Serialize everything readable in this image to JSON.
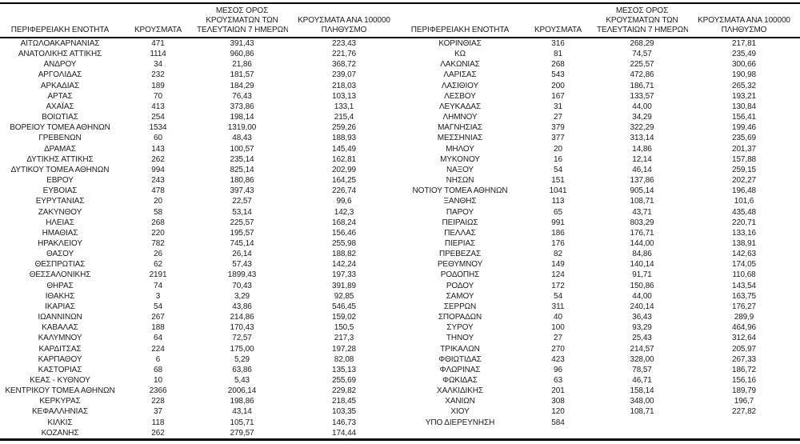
{
  "page": {
    "background_color": "#ffffff",
    "text_color": "#1c1c1c",
    "rule_color": "#000000"
  },
  "columns_meaning": [
    "region",
    "cases",
    "avg_cases_last_7_days",
    "cases_per_100000_population"
  ],
  "column_headers": {
    "region": "ΠΕΡΙΦΕΡΕΙΑΚΗ ΕΝΟΤΗΤΑ",
    "cases": "ΚΡΟΥΣΜΑΤΑ",
    "avg7_lines": [
      "ΜΕΣΟΣ ΟΡΟΣ",
      "ΚΡΟΥΣΜΑΤΩΝ ΤΩΝ",
      "ΤΕΛΕΥΤΑΙΩΝ 7 ΗΜΕΡΩΝ"
    ],
    "per100k_lines": [
      "ΚΡΟΥΣΜΑΤΑ ΑΝΑ 100000",
      "ΠΛΗΘΥΣΜΟ"
    ]
  },
  "left_table": {
    "rows": [
      [
        "ΑΙΤΩΛΟΑΚΑΡΝΑΝΙΑΣ",
        "471",
        "391,43",
        "223,43"
      ],
      [
        "ΑΝΑΤΟΛΙΚΗΣ ΑΤΤΙΚΗΣ",
        "1114",
        "960,86",
        "221,76"
      ],
      [
        "ΑΝΔΡΟΥ",
        "34",
        "21,86",
        "368,72"
      ],
      [
        "ΑΡΓΟΛΙΔΑΣ",
        "232",
        "181,57",
        "239,07"
      ],
      [
        "ΑΡΚΑΔΙΑΣ",
        "189",
        "184,29",
        "218,03"
      ],
      [
        "ΑΡΤΑΣ",
        "70",
        "76,43",
        "103,13"
      ],
      [
        "ΑΧΑΪΑΣ",
        "413",
        "373,86",
        "133,1"
      ],
      [
        "ΒΟΙΩΤΙΑΣ",
        "254",
        "198,14",
        "215,4"
      ],
      [
        "ΒΟΡΕΙΟΥ ΤΟΜΕΑ ΑΘΗΝΩΝ",
        "1534",
        "1319,00",
        "259,26"
      ],
      [
        "ΓΡΕΒΕΝΩΝ",
        "60",
        "48,43",
        "188,93"
      ],
      [
        "ΔΡΑΜΑΣ",
        "143",
        "100,57",
        "145,49"
      ],
      [
        "ΔΥΤΙΚΗΣ ΑΤΤΙΚΗΣ",
        "262",
        "235,14",
        "162,81"
      ],
      [
        "ΔΥΤΙΚΟΥ ΤΟΜΕΑ ΑΘΗΝΩΝ",
        "994",
        "825,14",
        "202,99"
      ],
      [
        "ΕΒΡΟΥ",
        "243",
        "180,86",
        "164,25"
      ],
      [
        "ΕΥΒΟΙΑΣ",
        "478",
        "397,43",
        "226,74"
      ],
      [
        "ΕΥΡΥΤΑΝΙΑΣ",
        "20",
        "22,57",
        "99,6"
      ],
      [
        "ΖΑΚΥΝΘΟΥ",
        "58",
        "53,14",
        "142,3"
      ],
      [
        "ΗΛΕΙΑΣ",
        "268",
        "225,57",
        "168,24"
      ],
      [
        "ΗΜΑΘΙΑΣ",
        "220",
        "195,57",
        "156,46"
      ],
      [
        "ΗΡΑΚΛΕΙΟΥ",
        "782",
        "745,14",
        "255,98"
      ],
      [
        "ΘΑΣΟΥ",
        "26",
        "26,14",
        "188,82"
      ],
      [
        "ΘΕΣΠΡΩΤΙΑΣ",
        "62",
        "57,43",
        "142,24"
      ],
      [
        "ΘΕΣΣΑΛΟΝΙΚΗΣ",
        "2191",
        "1899,43",
        "197,33"
      ],
      [
        "ΘΗΡΑΣ",
        "74",
        "70,43",
        "391,89"
      ],
      [
        "ΙΘΑΚΗΣ",
        "3",
        "3,29",
        "92,85"
      ],
      [
        "ΙΚΑΡΙΑΣ",
        "54",
        "43,86",
        "546,45"
      ],
      [
        "ΙΩΑΝΝΙΝΩΝ",
        "267",
        "214,86",
        "159,02"
      ],
      [
        "ΚΑΒΑΛΑΣ",
        "188",
        "170,43",
        "150,5"
      ],
      [
        "ΚΑΛΥΜΝΟΥ",
        "64",
        "72,57",
        "217,3"
      ],
      [
        "ΚΑΡΔΙΤΣΑΣ",
        "224",
        "175,00",
        "197,28"
      ],
      [
        "ΚΑΡΠΑΘΟΥ",
        "6",
        "5,29",
        "82,08"
      ],
      [
        "ΚΑΣΤΟΡΙΑΣ",
        "68",
        "63,86",
        "135,13"
      ],
      [
        "ΚΕΑΣ - ΚΥΘΝΟΥ",
        "10",
        "5,43",
        "255,69"
      ],
      [
        "ΚΕΝΤΡΙΚΟΥ ΤΟΜΕΑ ΑΘΗΝΩΝ",
        "2366",
        "2006,14",
        "229,82"
      ],
      [
        "ΚΕΡΚΥΡΑΣ",
        "228",
        "198,86",
        "218,45"
      ],
      [
        "ΚΕΦΑΛΛΗΝΙΑΣ",
        "37",
        "43,14",
        "103,35"
      ],
      [
        "ΚΙΛΚΙΣ",
        "118",
        "105,71",
        "146,73"
      ],
      [
        "ΚΟΖΑΝΗΣ",
        "262",
        "279,57",
        "174,44"
      ]
    ]
  },
  "right_table": {
    "rows": [
      [
        "ΚΟΡΙΝΘΙΑΣ",
        "316",
        "268,29",
        "217,81"
      ],
      [
        "ΚΩ",
        "81",
        "74,57",
        "235,49"
      ],
      [
        "ΛΑΚΩΝΙΑΣ",
        "268",
        "225,57",
        "300,66"
      ],
      [
        "ΛΑΡΙΣΑΣ",
        "543",
        "472,86",
        "190,98"
      ],
      [
        "ΛΑΣΙΘΙΟΥ",
        "200",
        "186,71",
        "265,32"
      ],
      [
        "ΛΕΣΒΟΥ",
        "167",
        "133,57",
        "193,21"
      ],
      [
        "ΛΕΥΚΑΔΑΣ",
        "31",
        "44,00",
        "130,84"
      ],
      [
        "ΛΗΜΝΟΥ",
        "27",
        "34,29",
        "156,41"
      ],
      [
        "ΜΑΓΝΗΣΙΑΣ",
        "379",
        "322,29",
        "199,46"
      ],
      [
        "ΜΕΣΣΗΝΙΑΣ",
        "377",
        "313,14",
        "235,69"
      ],
      [
        "ΜΗΛΟΥ",
        "20",
        "14,86",
        "201,37"
      ],
      [
        "ΜΥΚΟΝΟΥ",
        "16",
        "12,14",
        "157,88"
      ],
      [
        "ΝΑΞΟΥ",
        "54",
        "46,14",
        "259,15"
      ],
      [
        "ΝΗΣΩΝ",
        "151",
        "137,86",
        "202,27"
      ],
      [
        "ΝΟΤΙΟΥ ΤΟΜΕΑ ΑΘΗΝΩΝ",
        "1041",
        "905,14",
        "196,48"
      ],
      [
        "ΞΑΝΘΗΣ",
        "113",
        "108,71",
        "101,6"
      ],
      [
        "ΠΑΡΟΥ",
        "65",
        "43,71",
        "435,48"
      ],
      [
        "ΠΕΙΡΑΙΩΣ",
        "991",
        "803,29",
        "220,71"
      ],
      [
        "ΠΕΛΛΑΣ",
        "186",
        "176,71",
        "133,16"
      ],
      [
        "ΠΙΕΡΙΑΣ",
        "176",
        "144,00",
        "138,91"
      ],
      [
        "ΠΡΕΒΕΖΑΣ",
        "82",
        "84,86",
        "142,63"
      ],
      [
        "ΡΕΘΥΜΝΟΥ",
        "149",
        "140,14",
        "174,05"
      ],
      [
        "ΡΟΔΟΠΗΣ",
        "124",
        "91,71",
        "110,68"
      ],
      [
        "ΡΟΔΟΥ",
        "172",
        "150,86",
        "143,54"
      ],
      [
        "ΣΑΜΟΥ",
        "54",
        "44,00",
        "163,75"
      ],
      [
        "ΣΕΡΡΩΝ",
        "311",
        "240,14",
        "176,27"
      ],
      [
        "ΣΠΟΡΑΔΩΝ",
        "40",
        "36,43",
        "289,9"
      ],
      [
        "ΣΥΡΟΥ",
        "100",
        "93,29",
        "464,96"
      ],
      [
        "ΤΗΝΟΥ",
        "27",
        "25,43",
        "312,64"
      ],
      [
        "ΤΡΙΚΑΛΩΝ",
        "270",
        "214,57",
        "205,97"
      ],
      [
        "ΦΘΙΩΤΙΔΑΣ",
        "423",
        "328,00",
        "267,33"
      ],
      [
        "ΦΛΩΡΙΝΑΣ",
        "96",
        "78,57",
        "186,72"
      ],
      [
        "ΦΩΚΙΔΑΣ",
        "63",
        "46,71",
        "156,16"
      ],
      [
        "ΧΑΛΚΙΔΙΚΗΣ",
        "201",
        "158,14",
        "189,79"
      ],
      [
        "ΧΑΝΙΩΝ",
        "308",
        "348,00",
        "196,7"
      ],
      [
        "ΧΙΟΥ",
        "120",
        "108,71",
        "227,82"
      ],
      [
        "ΥΠΟ ΔΙΕΡΕΥΝΗΣΗ",
        "584",
        "",
        ""
      ]
    ]
  }
}
